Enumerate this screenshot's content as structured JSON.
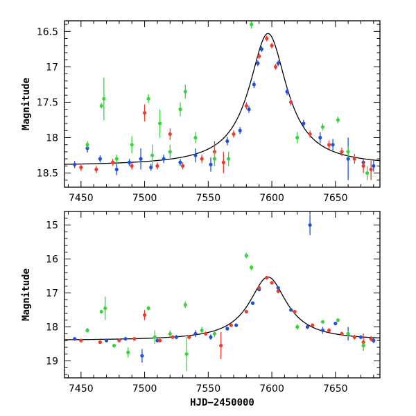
{
  "colors": {
    "blue": "#1f4fe0",
    "red": "#f03a2a",
    "green": "#35d63a",
    "black": "#000000"
  },
  "chart_data": [
    {
      "type": "scatter",
      "xlim": [
        7437,
        7685
      ],
      "ylim": [
        16.35,
        18.7
      ],
      "ylim_inverted": true,
      "ylabel": "Magnitude",
      "xlabel": "",
      "xticks": [
        7450,
        7500,
        7550,
        7600,
        7650
      ],
      "xtick_labels": [
        "7450",
        "7500",
        "7550",
        "7600",
        "7650"
      ],
      "yticks": [
        16.5,
        17,
        17.5,
        18,
        18.5
      ],
      "ytick_labels": [
        "16.5",
        "17",
        "17.5",
        "18",
        "18.5"
      ],
      "x_minor_step": 10,
      "y_minor_step": 0.1,
      "model": {
        "baseline": 18.4,
        "amplitude": 1.87,
        "t0": 7597,
        "width": 18,
        "x_range": [
          7437,
          7685
        ]
      },
      "series": [
        {
          "color_key": "blue",
          "x": [
            7445,
            7455,
            7465,
            7478,
            7488,
            7497,
            7505,
            7515,
            7528,
            7540,
            7552,
            7565,
            7575,
            7582,
            7586,
            7589,
            7592,
            7605,
            7612,
            7625,
            7638,
            7648,
            7660,
            7672,
            7680
          ],
          "y": [
            18.38,
            18.15,
            18.3,
            18.45,
            18.35,
            18.3,
            18.42,
            18.3,
            18.35,
            18.25,
            18.38,
            18.05,
            17.9,
            17.6,
            17.25,
            16.95,
            16.75,
            16.95,
            17.35,
            17.8,
            18.0,
            18.1,
            18.3,
            18.35,
            18.4
          ],
          "err": [
            0.05,
            0.06,
            0.05,
            0.08,
            0.05,
            0.15,
            0.05,
            0.06,
            0.05,
            0.1,
            0.1,
            0.06,
            0.05,
            0.05,
            0.05,
            0.04,
            0.04,
            0.04,
            0.05,
            0.05,
            0.08,
            0.08,
            0.3,
            0.05,
            0.08
          ]
        },
        {
          "color_key": "red",
          "x": [
            7450,
            7462,
            7475,
            7490,
            7500,
            7510,
            7520,
            7530,
            7545,
            7555,
            7562,
            7570,
            7580,
            7590,
            7596,
            7600,
            7603,
            7615,
            7630,
            7645,
            7655,
            7665,
            7672,
            7678
          ],
          "y": [
            18.42,
            18.45,
            18.35,
            18.4,
            17.65,
            18.4,
            17.95,
            18.4,
            18.3,
            18.2,
            18.35,
            17.95,
            17.55,
            16.85,
            16.6,
            16.7,
            17.0,
            17.5,
            17.95,
            18.1,
            18.2,
            18.3,
            18.4,
            18.45
          ],
          "err": [
            0.05,
            0.05,
            0.05,
            0.05,
            0.12,
            0.05,
            0.08,
            0.05,
            0.06,
            0.15,
            0.15,
            0.05,
            0.05,
            0.04,
            0.04,
            0.04,
            0.04,
            0.05,
            0.05,
            0.06,
            0.06,
            0.07,
            0.1,
            0.15
          ]
        },
        {
          "color_key": "green",
          "x": [
            7455,
            7466,
            7468,
            7478,
            7490,
            7503,
            7506,
            7512,
            7520,
            7528,
            7532,
            7540,
            7555,
            7566,
            7584,
            7620,
            7640,
            7652,
            7660,
            7675
          ],
          "y": [
            18.1,
            17.55,
            17.45,
            18.3,
            18.1,
            17.45,
            18.25,
            17.8,
            18.2,
            17.6,
            17.35,
            18.0,
            18.3,
            18.3,
            16.4,
            18.0,
            17.85,
            17.75,
            18.2,
            18.5
          ],
          "err": [
            0.05,
            0.04,
            0.3,
            0.06,
            0.12,
            0.06,
            0.15,
            0.2,
            0.1,
            0.1,
            0.1,
            0.08,
            0.1,
            0.1,
            0.06,
            0.08,
            0.05,
            0.05,
            0.08,
            0.1
          ]
        }
      ]
    },
    {
      "type": "scatter",
      "xlim": [
        7437,
        7685
      ],
      "ylim": [
        14.6,
        19.5
      ],
      "ylim_inverted": true,
      "ylabel": "Magnitude",
      "xlabel": "HJD−2450000",
      "xticks": [
        7450,
        7500,
        7550,
        7600,
        7650
      ],
      "xtick_labels": [
        "7450",
        "7500",
        "7550",
        "7600",
        "7650"
      ],
      "yticks": [
        15,
        16,
        17,
        18,
        19
      ],
      "ytick_labels": [
        "15",
        "16",
        "17",
        "18",
        "19"
      ],
      "x_minor_step": 10,
      "y_minor_step": 0.2,
      "model": {
        "baseline": 18.4,
        "amplitude": 1.87,
        "t0": 7597,
        "width": 18,
        "x_range": [
          7437,
          7685
        ]
      },
      "series": [
        {
          "color_key": "blue",
          "x": [
            7445,
            7455,
            7470,
            7485,
            7498,
            7510,
            7525,
            7540,
            7552,
            7565,
            7572,
            7585,
            7590,
            7605,
            7615,
            7628,
            7630,
            7640,
            7650,
            7660,
            7670,
            7680
          ],
          "y": [
            18.35,
            18.1,
            18.4,
            18.35,
            18.85,
            18.4,
            18.3,
            18.2,
            18.3,
            18.05,
            17.95,
            17.3,
            16.9,
            16.85,
            17.5,
            18.0,
            15.0,
            18.1,
            17.9,
            18.2,
            18.3,
            18.4
          ],
          "err": [
            0.05,
            0.06,
            0.05,
            0.05,
            0.2,
            0.05,
            0.06,
            0.1,
            0.08,
            0.06,
            0.05,
            0.05,
            0.04,
            0.04,
            0.05,
            0.06,
            0.3,
            0.1,
            0.05,
            0.2,
            0.05,
            0.08
          ]
        },
        {
          "color_key": "red",
          "x": [
            7450,
            7465,
            7480,
            7492,
            7500,
            7512,
            7522,
            7535,
            7548,
            7560,
            7568,
            7580,
            7590,
            7596,
            7600,
            7605,
            7618,
            7632,
            7645,
            7655,
            7665,
            7672,
            7678
          ],
          "y": [
            18.4,
            18.45,
            18.4,
            18.35,
            17.65,
            18.4,
            18.3,
            18.3,
            18.2,
            18.55,
            17.95,
            17.55,
            16.85,
            16.55,
            16.7,
            16.95,
            17.55,
            17.95,
            18.1,
            18.2,
            18.3,
            18.45,
            18.35
          ],
          "err": [
            0.05,
            0.05,
            0.05,
            0.05,
            0.15,
            0.05,
            0.05,
            0.06,
            0.06,
            0.4,
            0.05,
            0.05,
            0.04,
            0.04,
            0.04,
            0.04,
            0.05,
            0.05,
            0.06,
            0.06,
            0.07,
            0.25,
            0.08
          ]
        },
        {
          "color_key": "green",
          "x": [
            7455,
            7466,
            7469,
            7476,
            7487,
            7503,
            7508,
            7520,
            7532,
            7533,
            7545,
            7555,
            7580,
            7584,
            7620,
            7640,
            7652,
            7660,
            7672
          ],
          "y": [
            18.1,
            17.55,
            17.45,
            18.55,
            18.75,
            17.45,
            18.3,
            18.2,
            17.35,
            18.8,
            18.1,
            18.2,
            15.9,
            16.25,
            18.0,
            17.85,
            17.8,
            18.2,
            18.55
          ],
          "err": [
            0.05,
            0.04,
            0.35,
            0.06,
            0.15,
            0.06,
            0.2,
            0.1,
            0.1,
            0.5,
            0.1,
            0.1,
            0.08,
            0.08,
            0.08,
            0.05,
            0.05,
            0.08,
            0.1
          ]
        }
      ]
    }
  ]
}
